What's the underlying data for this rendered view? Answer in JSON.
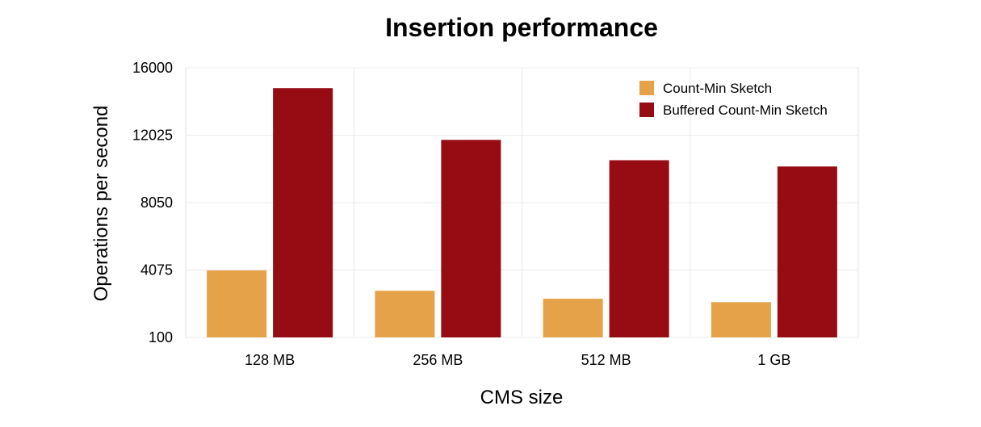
{
  "chart_data": {
    "type": "bar",
    "title": "Insertion performance",
    "xlabel": "CMS size",
    "ylabel": "Operations per second",
    "categories": [
      "128 MB",
      "256 MB",
      "512 MB",
      "1 GB"
    ],
    "series": [
      {
        "name": "Count-Min Sketch",
        "color": "#E6A249",
        "values": [
          4050,
          2850,
          2380,
          2180
        ]
      },
      {
        "name": "Buffered Count-Min Sketch",
        "color": "#970B13",
        "values": [
          14800,
          11750,
          10550,
          10180
        ]
      }
    ],
    "ylim": [
      100,
      16000
    ],
    "yticks": [
      100,
      4075,
      8050,
      12025,
      16000
    ],
    "grid": true,
    "legend_position": "top-right"
  }
}
